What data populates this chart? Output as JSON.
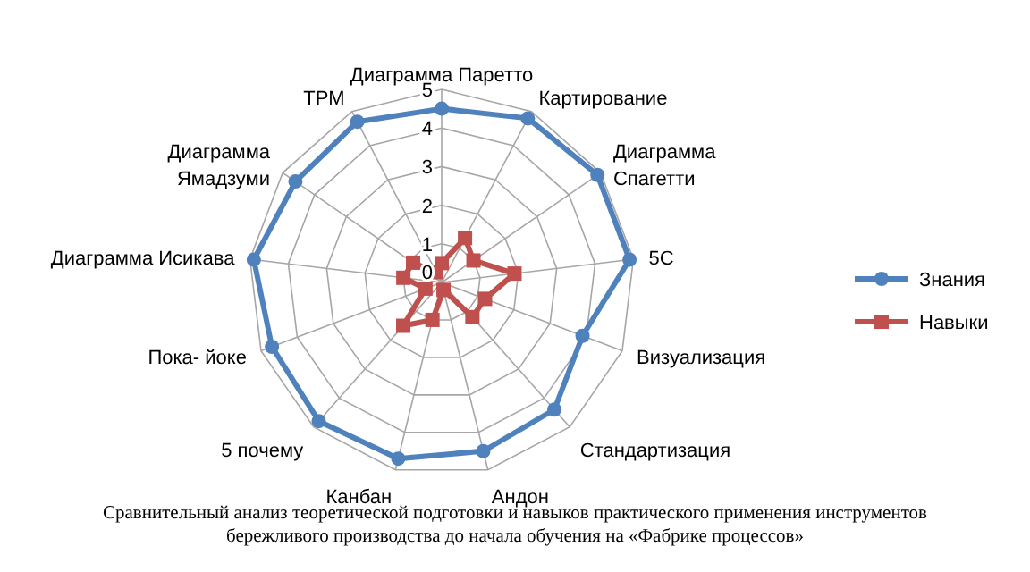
{
  "chart_data": {
    "type": "radar",
    "categories": [
      "Диаграмма Паретто",
      "Картирование",
      "Диаграмма Спагетти",
      "5С",
      "Визуализация",
      "Стандартизация",
      "Андон",
      "Канбан",
      "5 почему",
      "Пока- йоке",
      "Диаграмма Исикава",
      "Диаграмма Ямадзуми",
      "ТРМ"
    ],
    "series": [
      {
        "name": "Знания",
        "color": "#4f81bd",
        "marker": "circle",
        "values": [
          4.5,
          4.8,
          4.9,
          4.9,
          3.9,
          4.4,
          4.5,
          4.7,
          4.8,
          4.7,
          4.9,
          4.6,
          4.7
        ]
      },
      {
        "name": "Навыки",
        "color": "#c0504d",
        "marker": "square",
        "values": [
          0.5,
          1.3,
          1.0,
          1.9,
          1.2,
          1.2,
          0.2,
          1.0,
          1.5,
          0.45,
          1.0,
          0.9,
          0.3
        ]
      }
    ],
    "ylim": [
      0,
      5
    ],
    "yticks": [
      0,
      1,
      2,
      3,
      4,
      5
    ],
    "legend": "right",
    "annotations": [
      "Сравнительный анализ теоретической подготовки и навыков практического применения инструментов бережливого производства до начала обучения на «Фабрике процессов»"
    ]
  }
}
